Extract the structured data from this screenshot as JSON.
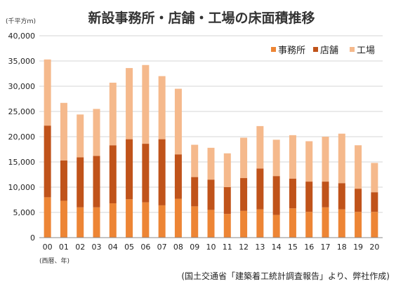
{
  "chart_data": {
    "type": "bar",
    "stacked": true,
    "title": "新設事務所・店舗・工場の床面積推移",
    "unit_label": "(千平方ｍ)",
    "xlabel": "(西暦、年)",
    "source": "(国土交通省「建築着工統計調査報告」より、弊社作成)",
    "ylim": [
      0,
      40000
    ],
    "yticks": [
      "0",
      "5,000",
      "10,000",
      "15,000",
      "20,000",
      "25,000",
      "30,000",
      "35,000",
      "40,000"
    ],
    "grid": true,
    "legend_position": "top-right",
    "categories": [
      "00",
      "01",
      "02",
      "03",
      "04",
      "05",
      "06",
      "07",
      "08",
      "09",
      "10",
      "11",
      "12",
      "13",
      "14",
      "15",
      "16",
      "17",
      "18",
      "19",
      "20"
    ],
    "series": [
      {
        "name": "事務所",
        "color": "#ED8535",
        "values": [
          8000,
          7300,
          6000,
          6000,
          6800,
          7600,
          7000,
          6400,
          7700,
          6200,
          5500,
          4700,
          5300,
          5600,
          4500,
          5800,
          5100,
          6000,
          5600,
          5100,
          5100
        ]
      },
      {
        "name": "店舗",
        "color": "#C0531A",
        "values": [
          14200,
          8000,
          9900,
          10200,
          11500,
          11900,
          11600,
          13100,
          8800,
          5800,
          6000,
          5300,
          6500,
          8100,
          7700,
          5900,
          6000,
          5100,
          5200,
          4600,
          3900
        ]
      },
      {
        "name": "工場",
        "color": "#F5B98C",
        "values": [
          13100,
          11400,
          8500,
          9300,
          12400,
          14100,
          15600,
          12500,
          13000,
          6400,
          6300,
          6700,
          8000,
          8400,
          7200,
          8600,
          8000,
          8900,
          9800,
          8600,
          5800
        ]
      }
    ]
  }
}
